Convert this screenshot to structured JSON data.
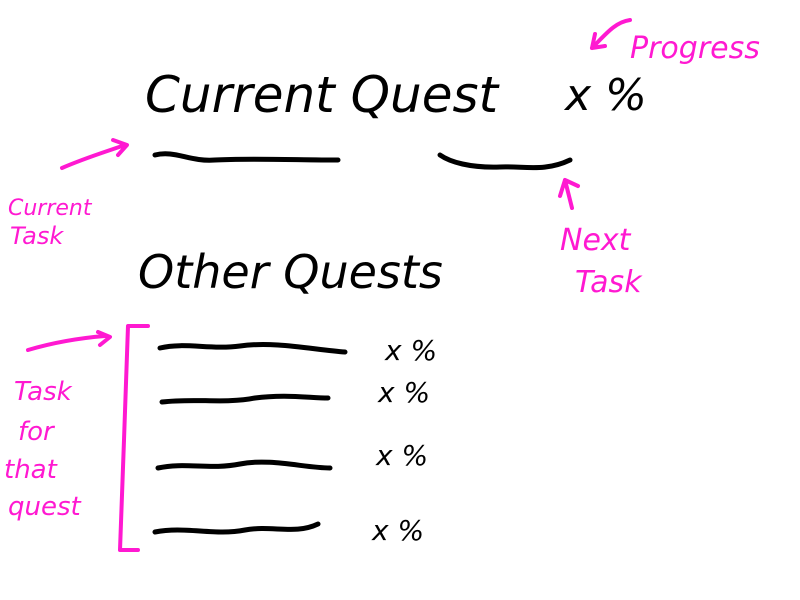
{
  "sketch": {
    "heading_current": "Current Quest",
    "progress_value": "x %",
    "heading_other": "Other Quests",
    "other_quest_progress": [
      "x %",
      "x %",
      "x %",
      "x %"
    ]
  },
  "annotations": {
    "progress": "Progress",
    "current_task": [
      "Current",
      "Task"
    ],
    "next_task": [
      "Next",
      "Task"
    ],
    "task_for_quest": [
      "Task",
      "for",
      "that",
      "quest"
    ]
  },
  "colors": {
    "ink": "#000000",
    "annotation": "#ff19d1",
    "background": "#ffffff"
  }
}
